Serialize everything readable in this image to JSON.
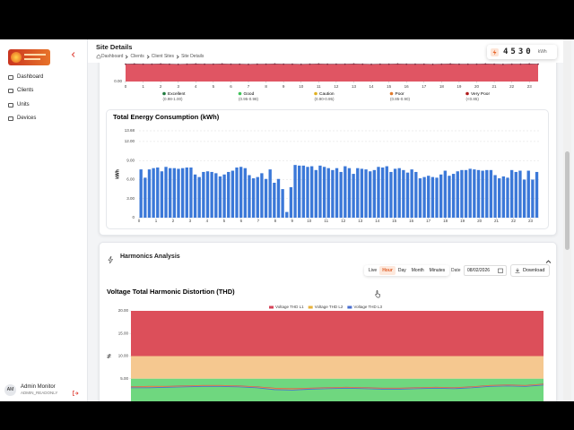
{
  "sidebar": {
    "nav": [
      "Dashboard",
      "Clients",
      "Units",
      "Devices"
    ],
    "user": {
      "initials": "AM",
      "name": "Admin Monitor",
      "role": "ADMIN_READONLY"
    }
  },
  "header": {
    "title": "Site Details",
    "breadcrumb": [
      "Dashboard",
      "Clients",
      "Client Sites",
      "Site Details"
    ]
  },
  "meter": {
    "value": 4530,
    "unit": "kWh"
  },
  "harmonics": {
    "title": "Harmonics Analysis",
    "modes": [
      "Live",
      "Hour",
      "Day",
      "Month",
      "Minutes"
    ],
    "active_mode": "Hour",
    "date_label": "Date",
    "date": "08/02/2026",
    "download": "Download"
  },
  "chart_data": [
    {
      "type": "area",
      "color": "#e05563",
      "line_color": "#7a3346",
      "ylim": [
        0,
        1
      ],
      "yticks": [
        {
          "value": 0,
          "label": "0.00"
        }
      ],
      "xlim": [
        0,
        23.5
      ],
      "xticks": [
        0,
        1,
        2,
        3,
        4,
        5,
        6,
        7,
        8,
        9,
        10,
        11,
        12,
        13,
        14,
        15,
        16,
        17,
        18,
        19,
        20,
        21,
        22,
        23
      ],
      "values": [
        0.97,
        0.98,
        0.97,
        0.97,
        0.98,
        0.97,
        0.96,
        0.97,
        0.98,
        0.97,
        0.97,
        0.98,
        0.97,
        0.97,
        0.96,
        0.97,
        0.97,
        0.98,
        0.97,
        0.97,
        0.96,
        0.97,
        0.98,
        0.97,
        0.97,
        0.97,
        0.98,
        0.97,
        0.96,
        0.97,
        0.97,
        0.98,
        0.97,
        0.97,
        0.97,
        0.96,
        0.97,
        0.98,
        0.97,
        0.97,
        0.97,
        0.98,
        0.97,
        0.96,
        0.97,
        0.97,
        0.98,
        0.97
      ],
      "legend": [
        {
          "name": "Excellent",
          "range": "(0.98-1.00)",
          "color": "#1f7a3e"
        },
        {
          "name": "Good",
          "range": "(0.95-0.98)",
          "color": "#3fc25a"
        },
        {
          "name": "Caution",
          "range": "(0.90-0.95)",
          "color": "#e0b020"
        },
        {
          "name": "Poor",
          "range": "(0.85-0.90)",
          "color": "#e07a2c"
        },
        {
          "name": "Very Poor",
          "range": "(<0.85)",
          "color": "#b01c1c"
        }
      ]
    },
    {
      "type": "bar",
      "title": "Total Energy Consumption (kWh)",
      "ylabel": "kWh",
      "color": "#3b78d8",
      "grid": true,
      "ylim": [
        0,
        13.68
      ],
      "yticks": [
        0,
        {
          "value": 3,
          "label": "3.00"
        },
        {
          "value": 6,
          "label": "6.00"
        },
        {
          "value": 9,
          "label": "9.00"
        },
        {
          "value": 12,
          "label": "12.00"
        },
        13.68
      ],
      "xlim": [
        0,
        23.5
      ],
      "xticks": [
        0,
        1,
        2,
        3,
        4,
        5,
        6,
        7,
        8,
        9,
        10,
        11,
        12,
        13,
        14,
        15,
        16,
        17,
        18,
        19,
        20,
        21,
        22,
        23
      ],
      "values": [
        7.6,
        6.3,
        7.6,
        7.8,
        7.9,
        7.3,
        8.0,
        7.8,
        7.8,
        7.7,
        7.8,
        7.9,
        7.9,
        6.8,
        6.4,
        7.2,
        7.3,
        7.2,
        7.0,
        6.5,
        6.8,
        7.2,
        7.4,
        7.9,
        8.0,
        7.8,
        6.7,
        6.2,
        6.4,
        7.0,
        6.1,
        7.6,
        5.5,
        6.1,
        4.5,
        0.9,
        4.8,
        8.3,
        8.2,
        8.2,
        8.0,
        8.1,
        7.5,
        8.2,
        8.0,
        7.8,
        7.5,
        7.8,
        7.2,
        8.1,
        7.8,
        6.9,
        7.8,
        7.7,
        7.6,
        7.3,
        7.5,
        8.0,
        7.9,
        8.1,
        7.2,
        7.7,
        7.8,
        7.5,
        7.1,
        7.6,
        7.2,
        6.2,
        6.4,
        6.6,
        6.4,
        6.3,
        6.8,
        7.4,
        6.6,
        6.9,
        7.3,
        7.5,
        7.5,
        7.7,
        7.6,
        7.5,
        7.4,
        7.5,
        7.5,
        6.7,
        6.2,
        6.5,
        6.3,
        7.5,
        7.2,
        7.4,
        6.0,
        7.4,
        6.0,
        7.2
      ]
    },
    {
      "type": "line",
      "title": "Voltage Total Harmonic Distortion (THD)",
      "ylabel": "%",
      "ylim": [
        0,
        20
      ],
      "yticks": [
        {
          "value": 5,
          "label": "5.00"
        },
        {
          "value": 10,
          "label": "10.00"
        },
        {
          "value": 15,
          "label": "15.00"
        },
        {
          "value": 20,
          "label": "20.00"
        }
      ],
      "bands": [
        {
          "from": 10,
          "to": 20,
          "color": "#dc4f5a"
        },
        {
          "from": 5,
          "to": 10,
          "color": "#f5c890"
        },
        {
          "from": 0,
          "to": 5,
          "color": "#6fd77f"
        }
      ],
      "series": [
        {
          "name": "Voltage THD L1",
          "color": "#d6455a",
          "values": [
            3.2,
            3.3,
            3.3,
            3.4,
            3.5,
            3.5,
            3.4,
            3.2,
            2.9,
            2.8,
            2.9,
            3.0,
            3.1,
            3.0,
            2.9,
            2.9,
            3.0,
            3.1,
            3.0,
            3.2,
            3.5,
            3.6,
            3.5,
            3.8
          ]
        },
        {
          "name": "Voltage THD L2",
          "color": "#e8b23a",
          "values": [
            3.1,
            3.2,
            3.2,
            3.3,
            3.4,
            3.4,
            3.3,
            3.1,
            2.8,
            2.7,
            2.8,
            2.9,
            3.0,
            2.9,
            2.8,
            2.8,
            2.9,
            3.0,
            2.9,
            3.1,
            3.4,
            3.5,
            3.4,
            3.7
          ]
        },
        {
          "name": "Voltage THD L3",
          "color": "#4a6fd0",
          "values": [
            3.0,
            3.0,
            3.1,
            3.2,
            3.3,
            3.3,
            3.2,
            3.0,
            2.6,
            2.5,
            2.7,
            2.8,
            2.9,
            2.8,
            2.7,
            2.7,
            2.8,
            2.9,
            2.8,
            3.0,
            3.3,
            3.4,
            3.3,
            3.6
          ]
        }
      ]
    }
  ]
}
